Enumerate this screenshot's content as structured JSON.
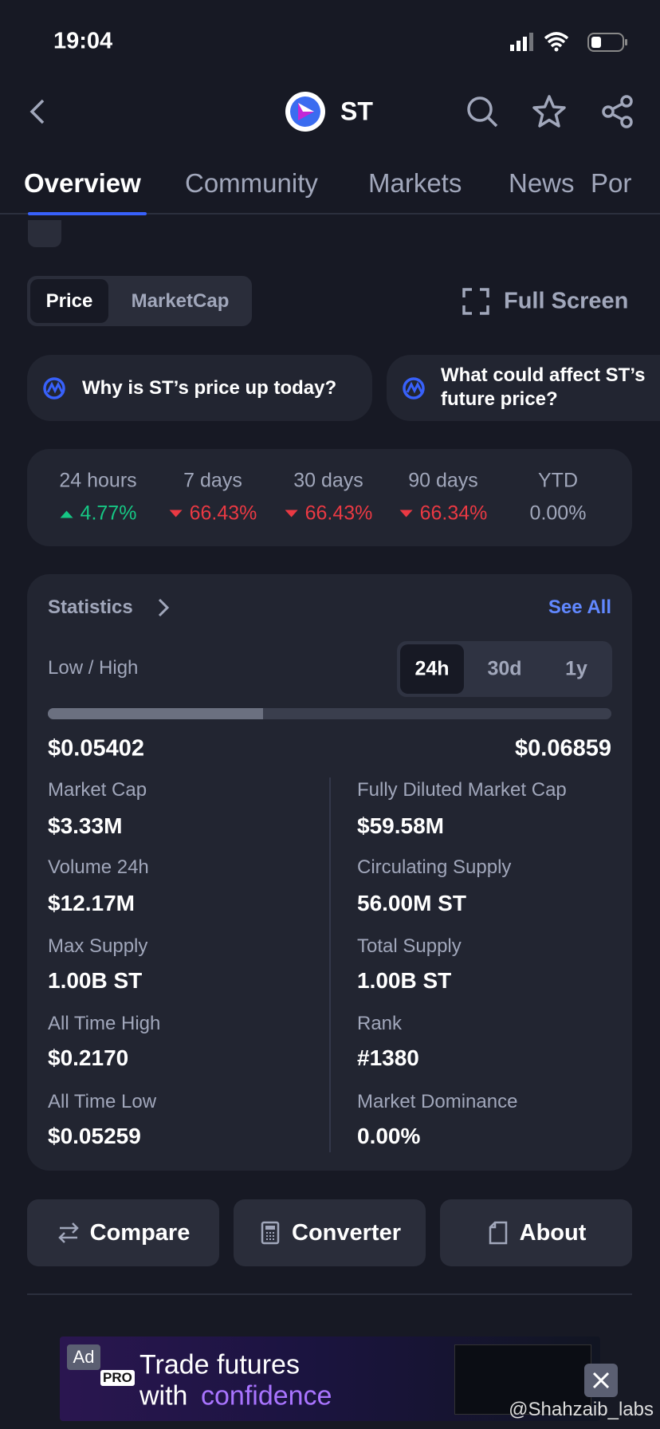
{
  "status_bar": {
    "time": "19:04"
  },
  "header": {
    "title": "ST"
  },
  "tabs": [
    "Overview",
    "Community",
    "Markets",
    "News",
    "Por"
  ],
  "toggle": [
    "Price",
    "MarketCap"
  ],
  "full_screen": "Full Screen",
  "questions": [
    "Why is ST’s price up today?",
    "What could affect ST’s",
    "future price?"
  ],
  "performance": [
    {
      "label": "24 hours",
      "value": "4.77%",
      "direction": "up"
    },
    {
      "label": "7 days",
      "value": "66.43%",
      "direction": "down"
    },
    {
      "label": "30 days",
      "value": "66.43%",
      "direction": "down"
    },
    {
      "label": "90 days",
      "value": "66.34%",
      "direction": "down"
    },
    {
      "label": "YTD",
      "value": "0.00%",
      "direction": "flat"
    }
  ],
  "statistics": {
    "title": "Statistics",
    "see_all": "See All",
    "range_label": "Low / High",
    "periods": [
      "24h",
      "30d",
      "1y"
    ],
    "low": "$0.05402",
    "high": "$0.06859",
    "left": [
      {
        "label": "Market Cap",
        "value": "$3.33M"
      },
      {
        "label": "Volume 24h",
        "value": "$12.17M"
      },
      {
        "label": "Max Supply",
        "value": "1.00B ST"
      },
      {
        "label": "All Time High",
        "value": "$0.2170"
      },
      {
        "label": "All Time Low",
        "value": "$0.05259"
      }
    ],
    "right": [
      {
        "label": "Fully Diluted Market Cap",
        "value": "$59.58M"
      },
      {
        "label": "Circulating Supply",
        "value": "56.00M ST"
      },
      {
        "label": "Total Supply",
        "value": "1.00B ST"
      },
      {
        "label": "Rank",
        "value": "#1380"
      },
      {
        "label": "Market Dominance",
        "value": "0.00%"
      }
    ]
  },
  "buttons": [
    "Compare",
    "Converter",
    "About"
  ],
  "ad": {
    "badge": "Ad",
    "pro": "PRO",
    "line1": "Trade futures",
    "line2a": "with",
    "line2b": "confidence"
  },
  "watermark": "@Shahzaib_labs"
}
